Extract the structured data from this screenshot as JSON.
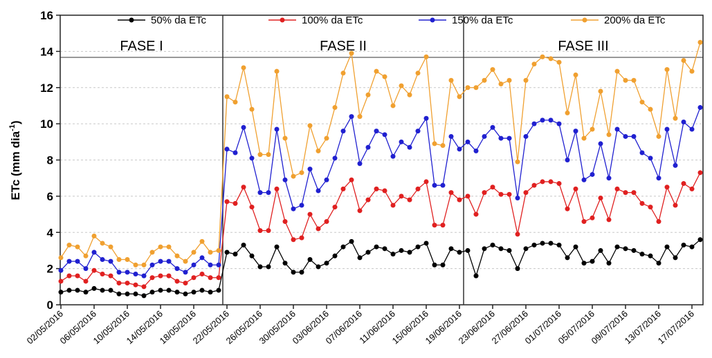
{
  "chart_data": {
    "type": "line",
    "y_label": [
      "ETc (mm dia",
      "-1",
      ")"
    ],
    "phases": [
      "FASE I",
      "FASE II",
      "FASE III"
    ],
    "categories": [
      "02/05/2016",
      null,
      null,
      null,
      "06/05/2016",
      null,
      null,
      null,
      "10/05/2016",
      null,
      null,
      null,
      "14/05/2016",
      null,
      null,
      null,
      "18/05/2016",
      null,
      null,
      null,
      "22/05/2016",
      null,
      null,
      null,
      "26/05/2016",
      null,
      null,
      null,
      "30/05/2016",
      null,
      null,
      null,
      "03/06/2016",
      null,
      null,
      null,
      "07/06/2016",
      null,
      null,
      null,
      "11/06/2016",
      null,
      null,
      null,
      "15/06/2016",
      null,
      null,
      null,
      "19/06/2016",
      null,
      null,
      null,
      "23/06/2016",
      null,
      null,
      null,
      "27/06/2016",
      null,
      null,
      null,
      "01/07/2016",
      null,
      null,
      null,
      "05/07/2016",
      null,
      null,
      null,
      "09/07/2016",
      null,
      null,
      null,
      "13/07/2016",
      null,
      null,
      null,
      "17/07/2016",
      null
    ],
    "series": [
      {
        "name": "50% da ETc",
        "color": "#000000",
        "values": [
          0.7,
          0.8,
          0.8,
          0.7,
          0.9,
          0.8,
          0.8,
          0.6,
          0.6,
          0.6,
          0.5,
          0.7,
          0.8,
          0.8,
          0.7,
          0.6,
          0.7,
          0.8,
          0.7,
          0.8,
          2.9,
          2.8,
          3.3,
          2.7,
          2.1,
          2.1,
          3.2,
          2.3,
          1.8,
          1.8,
          2.5,
          2.1,
          2.3,
          2.7,
          3.2,
          3.5,
          2.6,
          2.9,
          3.2,
          3.1,
          2.8,
          3.0,
          2.9,
          3.2,
          3.4,
          2.2,
          2.2,
          3.1,
          2.9,
          3.0,
          1.6,
          3.1,
          3.3,
          3.1,
          3.0,
          2.0,
          3.1,
          3.3,
          3.4,
          3.4,
          3.3,
          2.6,
          3.2,
          2.3,
          2.4,
          3.0,
          2.3,
          3.2,
          3.1,
          3.0,
          2.8,
          2.7,
          2.3,
          3.2,
          2.6,
          3.3,
          3.2,
          3.6
        ]
      },
      {
        "name": "100% da ETc",
        "color": "#e02020",
        "values": [
          1.3,
          1.6,
          1.6,
          1.3,
          1.9,
          1.7,
          1.6,
          1.2,
          1.2,
          1.1,
          1.0,
          1.5,
          1.6,
          1.6,
          1.3,
          1.2,
          1.5,
          1.7,
          1.5,
          1.5,
          5.7,
          5.6,
          6.5,
          5.4,
          4.1,
          4.1,
          6.4,
          4.6,
          3.6,
          3.7,
          5.0,
          4.2,
          4.6,
          5.4,
          6.4,
          6.9,
          5.2,
          5.8,
          6.4,
          6.3,
          5.5,
          6.0,
          5.8,
          6.4,
          6.8,
          4.4,
          4.4,
          6.2,
          5.8,
          6.0,
          5.0,
          6.2,
          6.5,
          6.1,
          6.1,
          3.9,
          6.2,
          6.6,
          6.8,
          6.8,
          6.7,
          5.3,
          6.4,
          4.6,
          4.8,
          5.9,
          4.7,
          6.4,
          6.2,
          6.2,
          5.6,
          5.4,
          4.6,
          6.5,
          5.5,
          6.7,
          6.4,
          7.3
        ]
      },
      {
        "name": "150% da ETc",
        "color": "#2020d0",
        "values": [
          1.9,
          2.4,
          2.4,
          2.0,
          2.9,
          2.5,
          2.4,
          1.8,
          1.8,
          1.7,
          1.6,
          2.2,
          2.4,
          2.4,
          2.0,
          1.8,
          2.2,
          2.6,
          2.2,
          2.2,
          8.6,
          8.4,
          9.8,
          8.1,
          6.2,
          6.2,
          9.7,
          6.9,
          5.3,
          5.5,
          7.5,
          6.3,
          6.9,
          8.1,
          9.6,
          10.4,
          7.8,
          8.7,
          9.6,
          9.4,
          8.2,
          9.0,
          8.7,
          9.6,
          10.3,
          6.6,
          6.6,
          9.3,
          8.6,
          9.0,
          8.5,
          9.3,
          9.8,
          9.2,
          9.2,
          5.9,
          9.3,
          10.0,
          10.2,
          10.2,
          10.0,
          8.0,
          9.6,
          6.9,
          7.2,
          8.9,
          7.0,
          9.7,
          9.3,
          9.3,
          8.4,
          8.1,
          7.0,
          9.7,
          7.7,
          10.1,
          9.7,
          10.9
        ]
      },
      {
        "name": "200% da ETc",
        "color": "#f0a030",
        "values": [
          2.6,
          3.3,
          3.2,
          2.7,
          3.8,
          3.4,
          3.2,
          2.5,
          2.5,
          2.2,
          2.2,
          2.9,
          3.2,
          3.2,
          2.7,
          2.4,
          2.9,
          3.5,
          2.9,
          3.0,
          11.5,
          11.2,
          13.1,
          10.8,
          8.3,
          8.3,
          12.9,
          9.2,
          7.1,
          7.3,
          9.9,
          8.5,
          9.2,
          10.9,
          12.8,
          13.9,
          10.4,
          11.6,
          12.9,
          12.6,
          11.0,
          12.1,
          11.6,
          12.8,
          13.7,
          8.9,
          8.8,
          12.4,
          11.5,
          12.0,
          12.0,
          12.4,
          13.0,
          12.2,
          12.4,
          7.9,
          12.4,
          13.3,
          13.7,
          13.6,
          13.4,
          10.6,
          12.7,
          9.2,
          9.7,
          11.8,
          9.4,
          12.9,
          12.4,
          12.4,
          11.2,
          10.8,
          9.3,
          13.0,
          10.3,
          13.5,
          12.9,
          14.5
        ]
      }
    ],
    "ylim": [
      0,
      16
    ],
    "yticks": [
      0,
      2,
      4,
      6,
      8,
      10,
      12,
      14,
      16
    ],
    "grid": true,
    "legend": "top"
  }
}
